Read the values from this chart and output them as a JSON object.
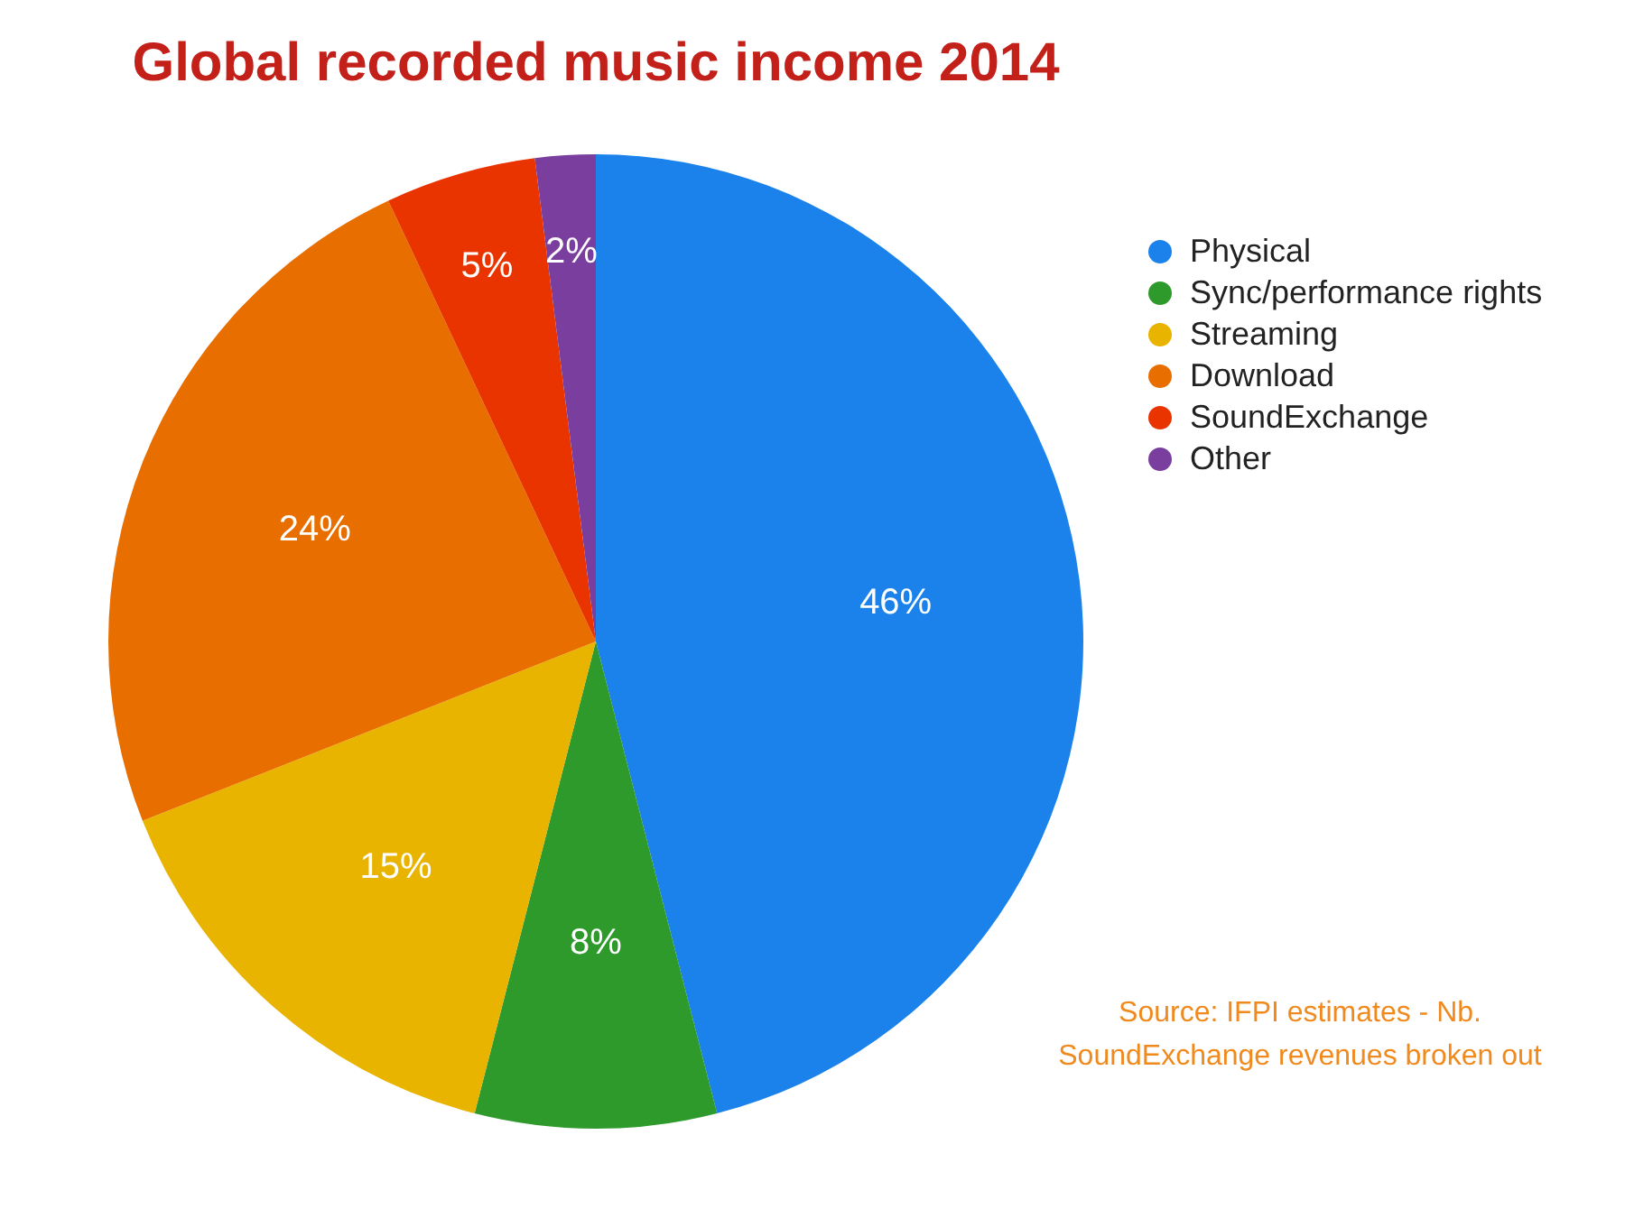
{
  "chart_data": {
    "type": "pie",
    "title": "Global recorded music income 2014",
    "categories": [
      "Physical",
      "Sync/performance rights",
      "Streaming",
      "Download",
      "SoundExchange",
      "Other"
    ],
    "values": [
      46,
      8,
      15,
      24,
      5,
      2
    ],
    "colors": [
      "#1a82ea",
      "#2f9a2c",
      "#e8b400",
      "#e86e00",
      "#ea3400",
      "#7a3f9e"
    ],
    "value_labels": [
      "46%",
      "8%",
      "15%",
      "24%",
      "5%",
      "2%"
    ],
    "legend": "top right",
    "annotations": [
      "Source: IFPI estimates - Nb. SoundExchange revenues broken out"
    ]
  }
}
